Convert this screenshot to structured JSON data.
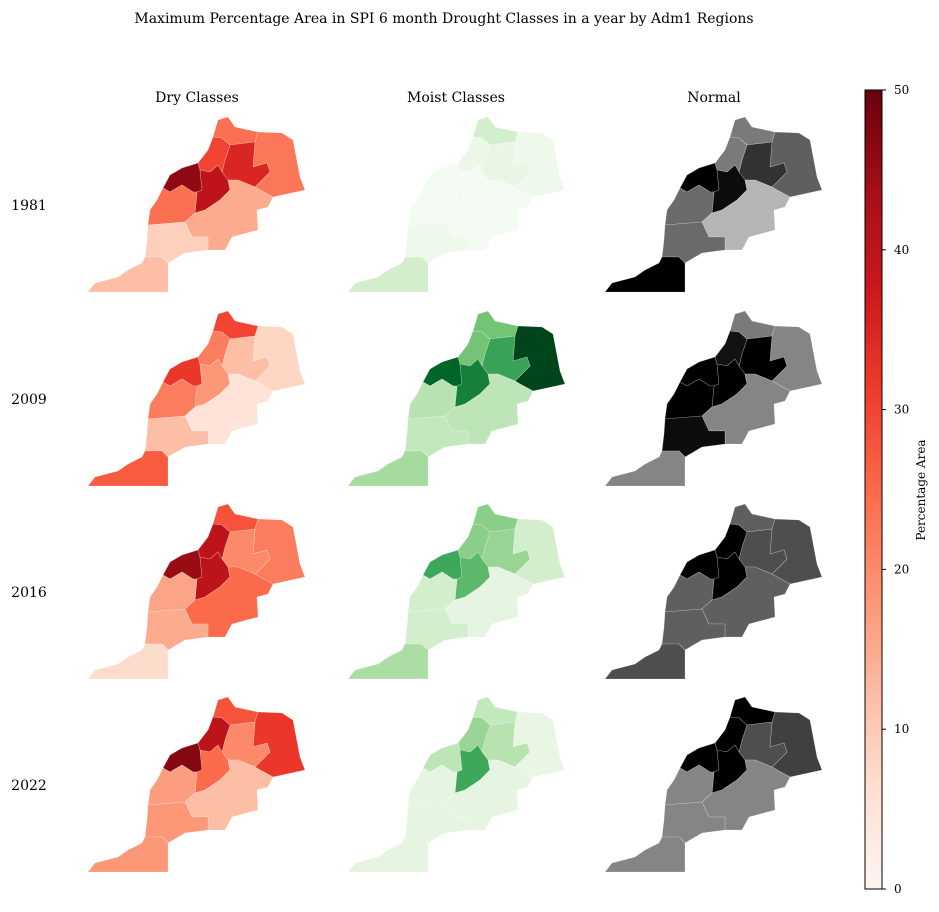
{
  "chart_data": {
    "type": "choropleth",
    "title": "Maximum Percentage Area in SPI 6 month Drought Classes in a year by Adm1 Regions",
    "columns": [
      {
        "label": "Dry Classes",
        "colormap": "Reds"
      },
      {
        "label": "Moist Classes",
        "colormap": "Greens"
      },
      {
        "label": "Normal",
        "colormap": "Greys"
      }
    ],
    "rows": [
      "1981",
      "2009",
      "2016",
      "2022"
    ],
    "value_range": [
      0,
      50
    ],
    "colorbar": {
      "label": "Percentage Area",
      "colormap": "Reds",
      "ticks": [
        "0",
        "10",
        "20",
        "30",
        "40",
        "50"
      ],
      "tick_values": [
        0,
        10,
        20,
        30,
        40,
        50
      ]
    },
    "values": {
      "1981": {
        "Dry Classes": [
          24,
          23,
          35,
          30,
          46,
          40,
          24,
          15,
          9,
          12
        ],
        "Moist Classes": [
          10,
          3,
          5,
          4,
          1,
          1,
          1,
          1,
          3,
          10
        ],
        "Normal": [
          30,
          35,
          42,
          30,
          50,
          48,
          33,
          20,
          33,
          50
        ]
      },
      "2009": {
        "Dry Classes": [
          30,
          8,
          12,
          22,
          32,
          18,
          22,
          5,
          12,
          27
        ],
        "Moist Classes": [
          25,
          50,
          33,
          25,
          45,
          40,
          15,
          14,
          13,
          18
        ],
        "Normal": [
          30,
          28,
          50,
          47,
          50,
          50,
          50,
          28,
          48,
          28
        ]
      },
      "2016": {
        "Dry Classes": [
          28,
          22,
          20,
          40,
          45,
          40,
          16,
          25,
          15,
          7
        ],
        "Moist Classes": [
          22,
          10,
          20,
          22,
          32,
          28,
          10,
          6,
          10,
          17
        ],
        "Normal": [
          35,
          38,
          38,
          50,
          50,
          50,
          35,
          35,
          35,
          38
        ]
      },
      "2022": {
        "Dry Classes": [
          28,
          32,
          20,
          40,
          47,
          25,
          17,
          12,
          18,
          18
        ],
        "Moist Classes": [
          13,
          5,
          15,
          20,
          14,
          32,
          6,
          6,
          6,
          6
        ],
        "Normal": [
          50,
          40,
          38,
          50,
          50,
          50,
          28,
          28,
          28,
          28
        ]
      }
    }
  }
}
